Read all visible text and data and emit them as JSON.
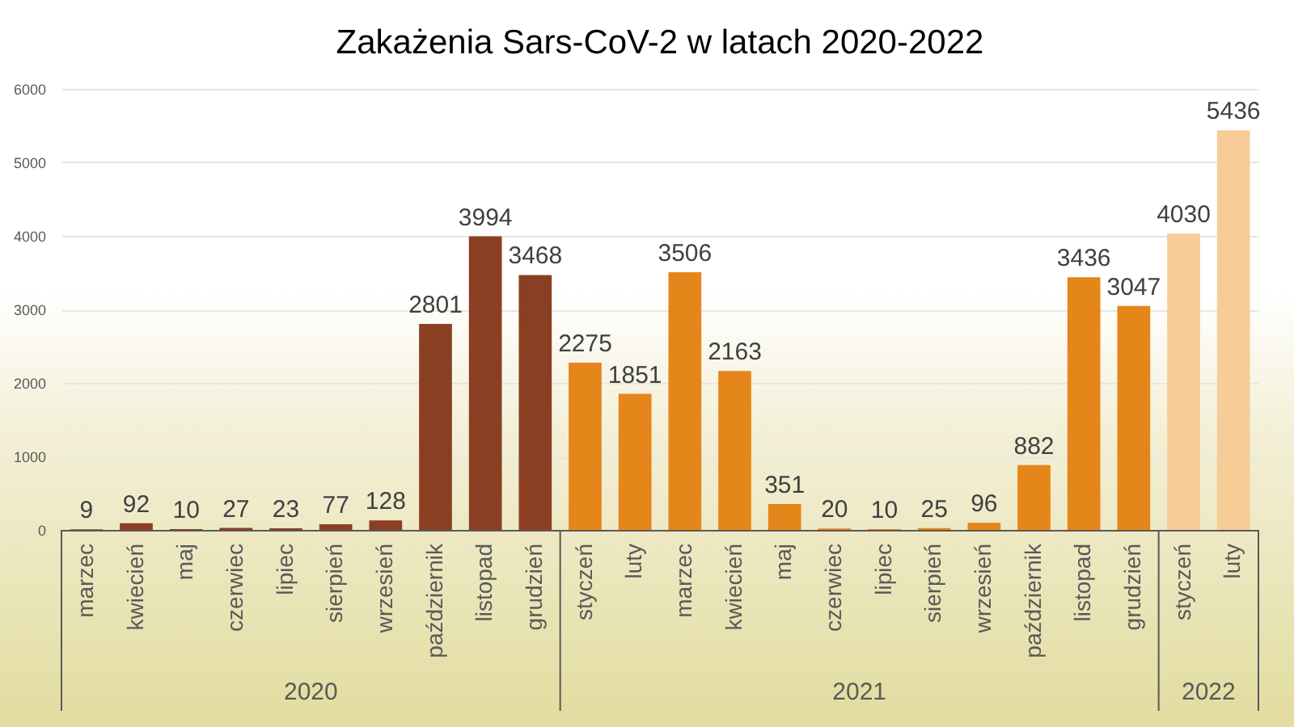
{
  "chart_data": {
    "type": "bar",
    "title": "Zakażenia Sars-CoV-2 w latach 2020-2022",
    "categories": [
      "marzec",
      "kwiecień",
      "maj",
      "czerwiec",
      "lipiec",
      "sierpień",
      "wrzesień",
      "październik",
      "listopad",
      "grudzień",
      "styczeń",
      "luty",
      "marzec",
      "kwiecień",
      "maj",
      "czerwiec",
      "lipiec",
      "sierpień",
      "wrzesień",
      "październik",
      "listopad",
      "grudzień",
      "styczeń",
      "luty"
    ],
    "values": [
      9,
      92,
      10,
      27,
      23,
      77,
      128,
      2801,
      3994,
      3468,
      2275,
      1851,
      3506,
      2163,
      351,
      20,
      10,
      25,
      96,
      882,
      3436,
      3047,
      4030,
      5436
    ],
    "colors": [
      "#8b3f22",
      "#8b3f22",
      "#8b3f22",
      "#8b3f22",
      "#8b3f22",
      "#8b3f22",
      "#8b3f22",
      "#8b3f22",
      "#8b3f22",
      "#8b3f22",
      "#e5861a",
      "#e5861a",
      "#e5861a",
      "#e5861a",
      "#e5861a",
      "#e5861a",
      "#e5861a",
      "#e5861a",
      "#e5861a",
      "#e5861a",
      "#e5861a",
      "#e5861a",
      "#f8cc97",
      "#f8cc97"
    ],
    "ylim": [
      0,
      6000
    ],
    "yticks": [
      0,
      1000,
      2000,
      3000,
      4000,
      5000,
      6000
    ],
    "grid": "y",
    "data_labels": true,
    "annotations": [
      "2020",
      "2021",
      "2022"
    ]
  }
}
